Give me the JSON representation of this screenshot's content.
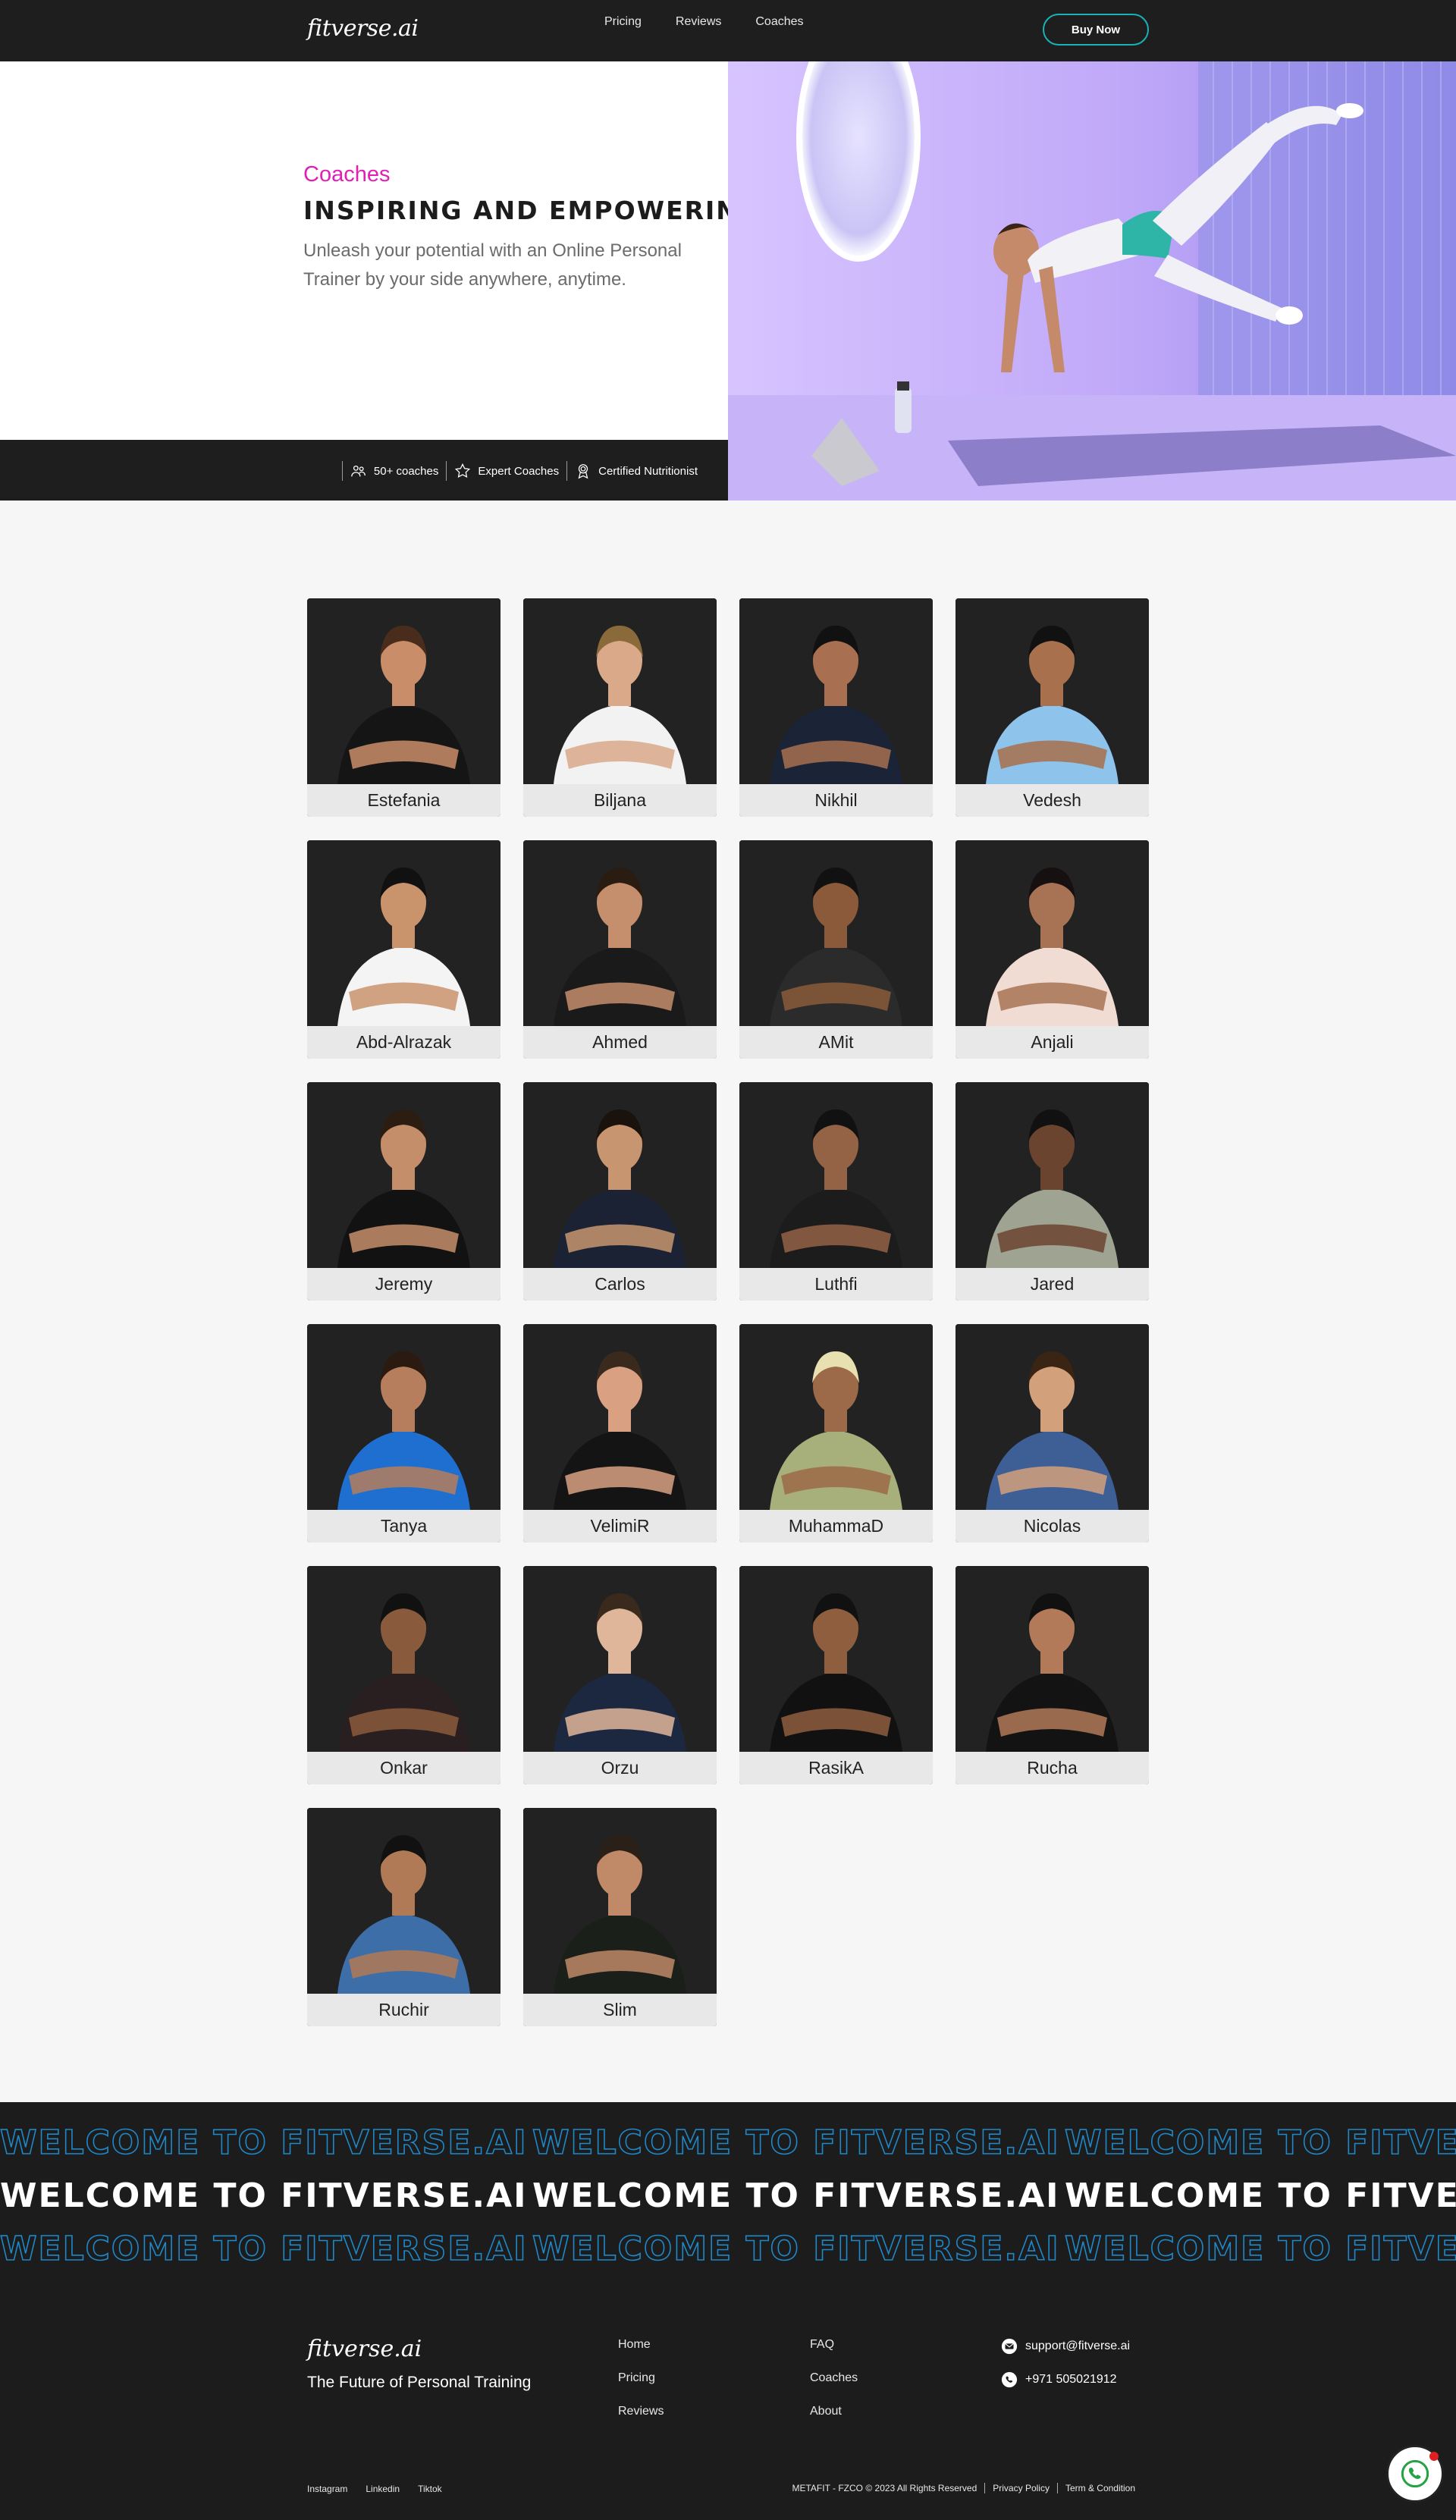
{
  "nav": {
    "logo": "fitverse.ai",
    "links": [
      "Pricing",
      "Reviews",
      "Coaches"
    ],
    "cta": "Buy Now"
  },
  "hero": {
    "kicker": "Coaches",
    "title": "INSPIRING AND EMPOWERING",
    "description": "Unleash your potential with an Online Personal Trainer by your side anywhere, anytime.",
    "stats": [
      "50+ coaches",
      "Expert Coaches",
      "Certified Nutritionist"
    ]
  },
  "coaches": [
    {
      "name": "Estefania",
      "shirt": "#151515",
      "skin": "#c98d6a",
      "hair": "#4a2c1c"
    },
    {
      "name": "Biljana",
      "shirt": "#f2f2f2",
      "skin": "#d9a98a",
      "hair": "#8a6a3a"
    },
    {
      "name": "Nikhil",
      "shirt": "#1b2336",
      "skin": "#a87050",
      "hair": "#111"
    },
    {
      "name": "Vedesh",
      "shirt": "#8ec3ec",
      "skin": "#a8704c",
      "hair": "#111"
    },
    {
      "name": "Abd-Alrazak",
      "shirt": "#f4f4f4",
      "skin": "#c9936c",
      "hair": "#111"
    },
    {
      "name": "Ahmed",
      "shirt": "#1a1a1a",
      "skin": "#c58e6c",
      "hair": "#2b1c12"
    },
    {
      "name": "AMit",
      "shirt": "#2b2b2b",
      "skin": "#8a5a3a",
      "hair": "#111"
    },
    {
      "name": "Anjali",
      "shirt": "#f1dcd4",
      "skin": "#a87354",
      "hair": "#161010"
    },
    {
      "name": "Jeremy",
      "shirt": "#121212",
      "skin": "#c58e6a",
      "hair": "#2b1d12"
    },
    {
      "name": "Carlos",
      "shirt": "#1b2233",
      "skin": "#c79670",
      "hair": "#1a120c"
    },
    {
      "name": "Luthfi",
      "shirt": "#1c1c1c",
      "skin": "#946245",
      "hair": "#111"
    },
    {
      "name": "Jared",
      "shirt": "#9ea491",
      "skin": "#6b4430",
      "hair": "#111"
    },
    {
      "name": "Tanya",
      "shirt": "#1f6fd0",
      "skin": "#b67e5c",
      "hair": "#2a1a10"
    },
    {
      "name": "VelimiR",
      "shirt": "#141414",
      "skin": "#d9a182",
      "hair": "#3a2a1e"
    },
    {
      "name": "MuhammaD",
      "shirt": "#a7b07a",
      "skin": "#9c6a48",
      "hair": "#e8e0b0"
    },
    {
      "name": "Nicolas",
      "shirt": "#3d5f96",
      "skin": "#d3a07c",
      "hair": "#3a2414"
    },
    {
      "name": "Onkar",
      "shirt": "#2a1f20",
      "skin": "#8a5a3c",
      "hair": "#111"
    },
    {
      "name": "Orzu",
      "shirt": "#1c2840",
      "skin": "#e0b69a",
      "hair": "#3a2a1e"
    },
    {
      "name": "RasikA",
      "shirt": "#111111",
      "skin": "#8e5e3e",
      "hair": "#111"
    },
    {
      "name": "Rucha",
      "shirt": "#131313",
      "skin": "#b27a58",
      "hair": "#111"
    },
    {
      "name": "Ruchir",
      "shirt": "#3e6ea8",
      "skin": "#b17a56",
      "hair": "#111"
    },
    {
      "name": "Slim",
      "shirt": "#1a1f1a",
      "skin": "#c08a68",
      "hair": "#2a2018"
    }
  ],
  "marquee": {
    "text": "WELCOME TO FITVERSE.AI",
    "outline_color": "#1e88c8"
  },
  "footer": {
    "logo": "fitverse.ai",
    "tagline": "The Future of Personal Training",
    "col1": [
      "Home",
      "Pricing",
      "Reviews"
    ],
    "col2": [
      "FAQ",
      "Coaches",
      "About"
    ],
    "email": "support@fitverse.ai",
    "phone": "+971 505021912",
    "social": [
      "Instagram",
      "Linkedin",
      "Tiktok"
    ],
    "copyright": "METAFIT - FZCO © 2023 All Rights Reserved",
    "privacy": "Privacy Policy",
    "terms": "Term & Condition"
  },
  "colors": {
    "accent_pink": "#e11fb4",
    "accent_teal": "#17b3b7",
    "dark": "#1f1e1e"
  }
}
